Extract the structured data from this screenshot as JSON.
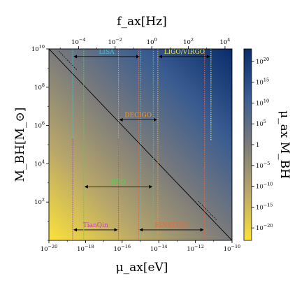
{
  "chart_data": {
    "type": "heatmap",
    "title": "",
    "xlabel": "μ_ax[eV]",
    "ylabel": "M_BH[M_⊙]",
    "top_xlabel": "f_ax[Hz]",
    "colorbar_label": "μ_ax M_BH",
    "xscale": "log",
    "yscale": "log",
    "xlim": [
      1e-20,
      1e-10
    ],
    "ylim": [
      1,
      10000000000.0
    ],
    "x_ticks": [
      {
        "exp": -20,
        "label": "10−20"
      },
      {
        "exp": -18,
        "label": "10−18"
      },
      {
        "exp": -16,
        "label": "10−16"
      },
      {
        "exp": -14,
        "label": "10−14"
      },
      {
        "exp": -12,
        "label": "10−12"
      },
      {
        "exp": -10,
        "label": "10−10"
      }
    ],
    "y_ticks": [
      {
        "exp": 2,
        "label": "102"
      },
      {
        "exp": 4,
        "label": "104"
      },
      {
        "exp": 6,
        "label": "106"
      },
      {
        "exp": 8,
        "label": "108"
      },
      {
        "exp": 10,
        "label": "1010"
      }
    ],
    "top_ticks": [
      {
        "hz_exp": -4,
        "label": "10−4"
      },
      {
        "hz_exp": -2,
        "label": "10−2"
      },
      {
        "hz_exp": 0,
        "label": "100"
      },
      {
        "hz_exp": 2,
        "label": "102"
      },
      {
        "hz_exp": 4,
        "label": "104"
      }
    ],
    "colorbar_ticks": [
      {
        "exp": 20,
        "label": "1020"
      },
      {
        "exp": 15,
        "label": "1015"
      },
      {
        "exp": 10,
        "label": "1010"
      },
      {
        "exp": 5,
        "label": "105"
      },
      {
        "exp": 0,
        "label": "1"
      },
      {
        "exp": -5,
        "label": "10−5"
      },
      {
        "exp": -10,
        "label": "10−10"
      },
      {
        "exp": -15,
        "label": "10−15"
      },
      {
        "exp": -20,
        "label": "10−20"
      }
    ],
    "colorbar_range_exp": [
      -23,
      23
    ],
    "colormap": [
      "#fce23a",
      "#b9a76a",
      "#7b7b7b",
      "#3a5c91",
      "#0a2c6a"
    ],
    "diagonal_line": {
      "color": "#000000"
    },
    "detectors": [
      {
        "name": "LISA",
        "color": "#33c6dc",
        "x_exp": [
          -18.7,
          -15
        ],
        "y_exp": 9.6,
        "ymin_exp": 0,
        "ymax_exp": 10
      },
      {
        "name": "LIGO/VIRGO",
        "color": "#f2e94e",
        "x_exp": [
          -14.05,
          -11.15
        ],
        "y_exp": 9.6,
        "ymin_exp": 5.2,
        "ymax_exp": 10
      },
      {
        "name": "DECIGO",
        "color": "#f09a2c",
        "x_exp": [
          -16.2,
          -14.05
        ],
        "y_exp": 6.3,
        "ymin_exp": 0,
        "ymax_exp": 10
      },
      {
        "name": "TianQin",
        "color": "#c23fb6",
        "x_exp": [
          -18.7,
          -16.2
        ],
        "y_exp": 0.55,
        "ymin_exp": 0,
        "ymax_exp": 5.3
      },
      {
        "name": "BBO",
        "color": "#3ddc4a",
        "x_exp": [
          -18.1,
          -14.3
        ],
        "y_exp": 2.8,
        "ymin_exp": 0,
        "ymax_exp": 10
      },
      {
        "name": "EINSTEIN",
        "color": "#e8683e",
        "x_exp": [
          -15.1,
          -11.5
        ],
        "y_exp": 0.55,
        "ymin_exp": 0,
        "ymax_exp": 10
      }
    ]
  }
}
